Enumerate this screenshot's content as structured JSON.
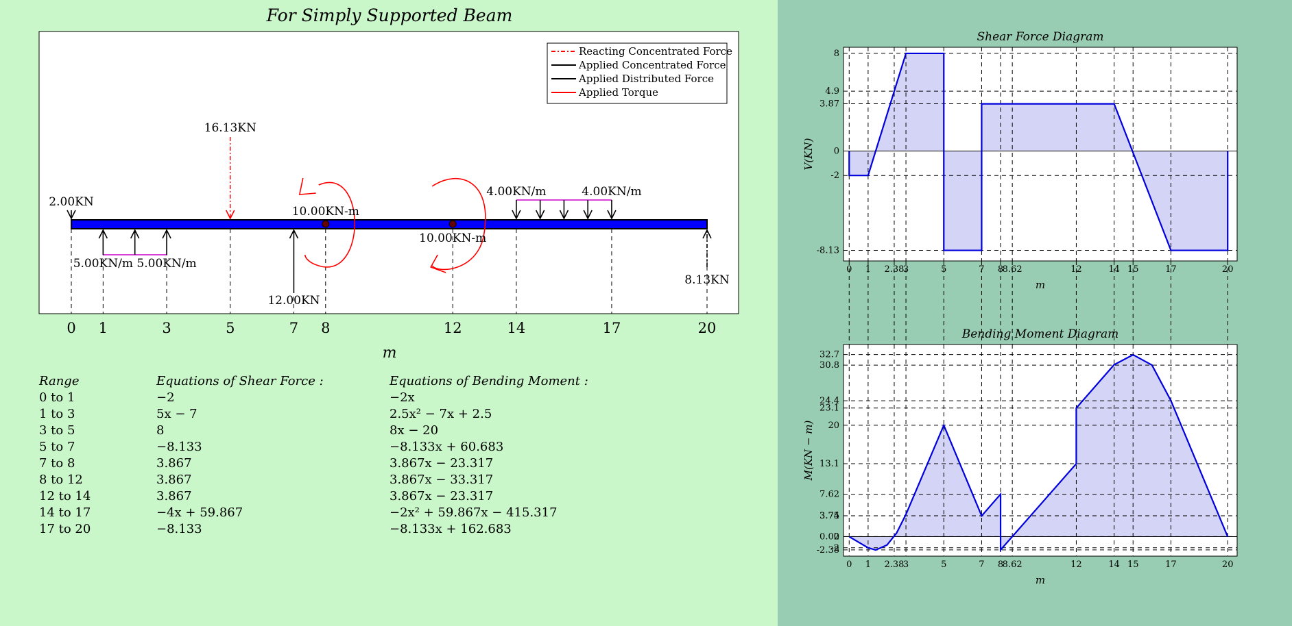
{
  "beam_panel": {
    "title": "For Simply Supported Beam",
    "xlabel": "m",
    "ticks": [
      0,
      1,
      3,
      5,
      7,
      8,
      12,
      14,
      17,
      20
    ],
    "legend": [
      {
        "label": "Reacting Concentrated Force",
        "color": "#ff0000",
        "style": "dashdot"
      },
      {
        "label": "Applied Concentrated Force",
        "color": "#000000",
        "style": "solid"
      },
      {
        "label": "Applied Distributed Force",
        "color": "#000000",
        "style": "solid"
      },
      {
        "label": "Applied Torque",
        "color": "#ff0000",
        "style": "solid"
      }
    ],
    "beam_color": "#0000ff",
    "point_loads": [
      {
        "x": 0,
        "label": "2.00KN",
        "dir": "down",
        "type": "applied"
      },
      {
        "x": 5,
        "label": "16.13KN",
        "dir": "down",
        "type": "reaction"
      },
      {
        "x": 7,
        "label": "12.00KN",
        "dir": "up",
        "type": "applied"
      },
      {
        "x": 20,
        "label": "8.13KN",
        "dir": "up",
        "type": "reaction"
      }
    ],
    "distributed_loads": [
      {
        "x_start": 1,
        "x_end": 3,
        "label_start": "5.00KN/m",
        "label_end": "5.00KN/m",
        "dir": "up"
      },
      {
        "x_start": 14,
        "x_end": 17,
        "label_start": "4.00KN/m",
        "label_end": "4.00KN/m",
        "dir": "down"
      }
    ],
    "torques": [
      {
        "x": 8,
        "label": "10.00KN-m"
      },
      {
        "x": 12,
        "label": "10.00KN-m"
      }
    ]
  },
  "equations": {
    "headers": {
      "range": "Range",
      "shear": "Equations of Shear Force :",
      "moment": "Equations of Bending Moment :"
    },
    "rows": [
      {
        "range": "0 to 1",
        "shear": "−2",
        "moment": "−2x"
      },
      {
        "range": "1 to 3",
        "shear": "5x − 7",
        "moment": "2.5x² − 7x + 2.5"
      },
      {
        "range": "3 to 5",
        "shear": "8",
        "moment": "8x − 20"
      },
      {
        "range": "5 to 7",
        "shear": "−8.133",
        "moment": "−8.133x + 60.683"
      },
      {
        "range": "7 to 8",
        "shear": "3.867",
        "moment": "3.867x − 23.317"
      },
      {
        "range": "8 to 12",
        "shear": "3.867",
        "moment": "3.867x − 33.317"
      },
      {
        "range": "12 to 14",
        "shear": "3.867",
        "moment": "3.867x − 23.317"
      },
      {
        "range": "14 to 17",
        "shear": "−4x + 59.867",
        "moment": "−2x² + 59.867x − 415.317"
      },
      {
        "range": "17 to 20",
        "shear": "−8.133",
        "moment": "−8.133x + 162.683"
      }
    ]
  },
  "chart_data": [
    {
      "type": "area",
      "title": "Shear Force Diagram",
      "xlabel": "m",
      "ylabel": "V(KN)",
      "xlim": [
        -0.3,
        20.5
      ],
      "ylim": [
        -9,
        8.5
      ],
      "xticks": [
        0,
        1,
        2.38,
        3,
        5,
        7,
        8,
        8.62,
        12,
        14,
        15,
        17,
        20
      ],
      "xtick_labels": [
        "0",
        "1",
        "2.38",
        "3",
        "5",
        "7",
        "8",
        "8.62",
        "12",
        "14",
        "15",
        "17",
        "20"
      ],
      "yticks": [
        -8.13,
        -2,
        0,
        3.87,
        4.9,
        8
      ],
      "ytick_labels": [
        "-8.13",
        "-2",
        "0",
        "3.87",
        "4.9",
        "8"
      ],
      "grid": true,
      "fill_color": "#d4d4f6",
      "line_color": "#0000dd",
      "x": [
        0,
        0,
        1,
        3,
        5,
        5,
        7,
        7,
        8,
        12,
        14,
        17,
        20,
        20
      ],
      "y": [
        0,
        -2,
        -2,
        8,
        8,
        -8.133,
        -8.133,
        3.867,
        3.867,
        3.867,
        3.867,
        -8.133,
        -8.133,
        0
      ]
    },
    {
      "type": "area",
      "title": "Bending Moment Diagram",
      "xlabel": "m",
      "ylabel": "M(KN − m)",
      "xlim": [
        -0.3,
        20.5
      ],
      "ylim": [
        -3.5,
        34.5
      ],
      "xticks": [
        0,
        1,
        2.38,
        3,
        5,
        7,
        8,
        8.62,
        12,
        14,
        15,
        17,
        20
      ],
      "xtick_labels": [
        "0",
        "1",
        "2.38",
        "3",
        "5",
        "7",
        "8",
        "8.62",
        "12",
        "14",
        "15",
        "17",
        "20"
      ],
      "yticks": [
        -2.38,
        -2,
        0,
        0.02,
        3.74,
        3.75,
        7.62,
        13.1,
        20,
        23.1,
        24.4,
        30.8,
        32.7
      ],
      "ytick_labels": [
        "-2.38",
        "-2",
        "0",
        "0.02",
        "3.74",
        "3.75",
        "7.62",
        "13.1",
        "20",
        "23.1",
        "24.4",
        "30.8",
        "32.7"
      ],
      "grid": true,
      "fill_color": "#d4d4f6",
      "line_color": "#0000dd",
      "x": [
        0,
        1,
        1.4,
        2,
        2.5,
        3,
        5,
        7,
        8,
        8,
        12,
        12,
        14,
        15,
        16,
        17,
        20
      ],
      "y": [
        0,
        -2,
        -2.4,
        -1.5,
        0.62,
        4,
        20,
        3.73,
        7.62,
        -2.38,
        13.09,
        23.09,
        30.87,
        32.66,
        30.8,
        24.42,
        0
      ]
    }
  ]
}
